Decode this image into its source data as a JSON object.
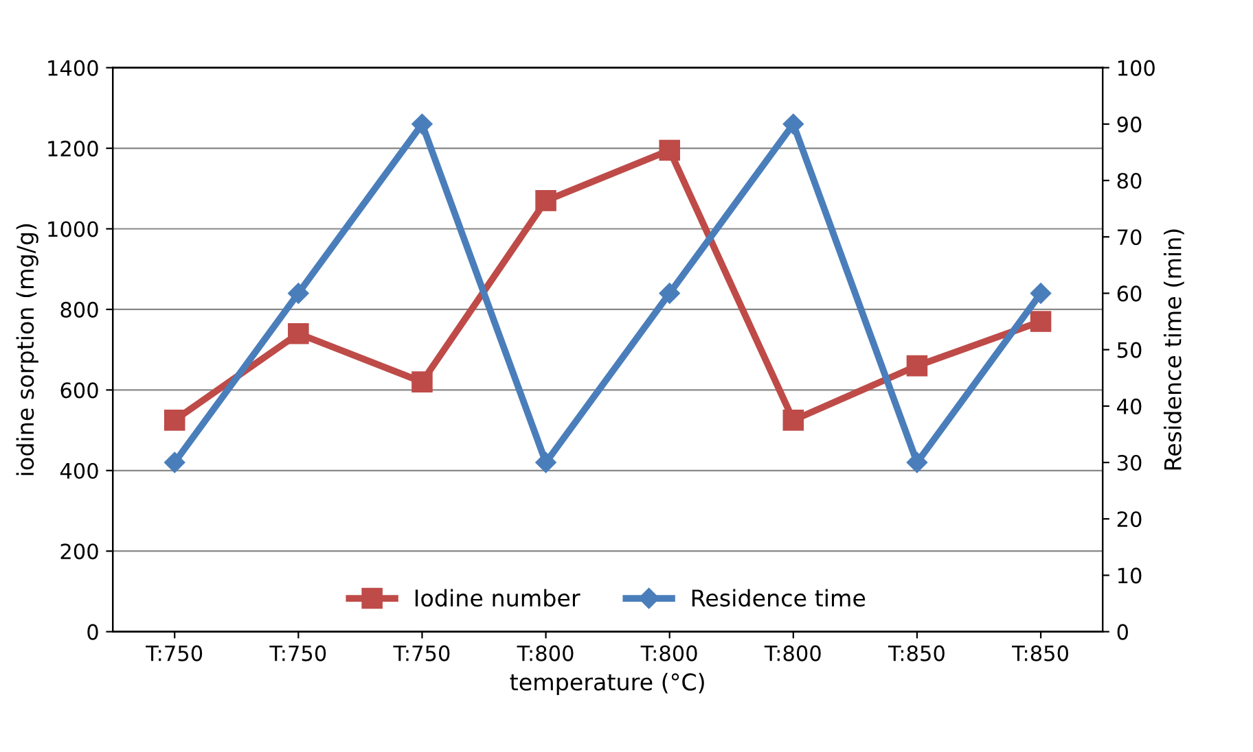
{
  "chart_data": {
    "type": "line",
    "xlabel": "temperature (°C)",
    "ylabel": "iodine sorption (mg/g)",
    "y2label": "Residence time (min)",
    "categories": [
      "T:750",
      "T:750",
      "T:750",
      "T:800",
      "T:800",
      "T:800",
      "T:850",
      "T:850"
    ],
    "series": [
      {
        "name": "Iodine number",
        "color": "#be4b48",
        "marker": "square",
        "values": [
          525,
          740,
          620,
          1070,
          1195,
          525,
          660,
          770
        ]
      },
      {
        "name": "Residence time",
        "color": "#4a7ebb",
        "marker": "diamond",
        "axis": "y2",
        "values": [
          30,
          60,
          90,
          30,
          60,
          90,
          30,
          60
        ]
      }
    ],
    "ylim": [
      0,
      1400
    ],
    "yticks": [
      0,
      200,
      400,
      600,
      800,
      1000,
      1200,
      1400
    ],
    "y2lim": [
      0,
      100
    ],
    "y2ticks": [
      0,
      10,
      20,
      30,
      40,
      50,
      60,
      70,
      80,
      90,
      100
    ],
    "grid": "y",
    "legend": "bottom",
    "line_style": "solid"
  }
}
